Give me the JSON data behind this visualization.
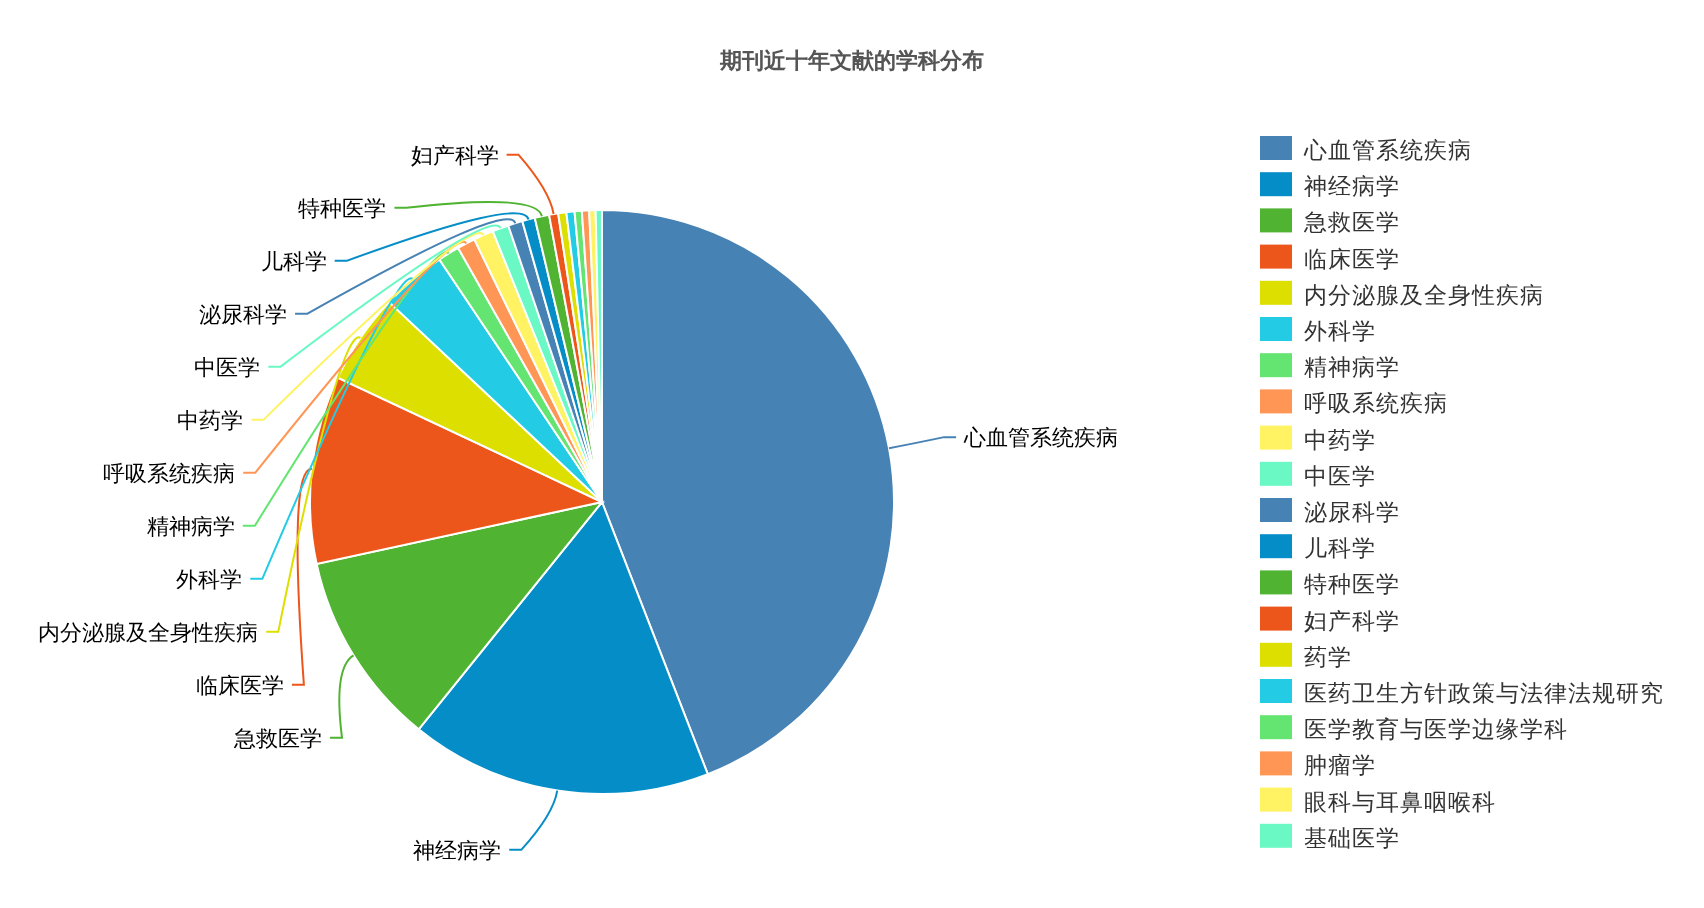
{
  "chart_data": {
    "type": "pie",
    "title": "期刊近十年文献的学科分布",
    "categories": [
      "心血管系统疾病",
      "神经病学",
      "急救医学",
      "临床医学",
      "内分泌腺及全身性疾病",
      "外科学",
      "精神病学",
      "呼吸系统疾病",
      "中药学",
      "中医学",
      "泌尿科学",
      "儿科学",
      "特种医学",
      "妇产科学",
      "药学",
      "医药卫生方针政策与法律法规研究",
      "医学教育与医学边缘学科",
      "肿瘤学",
      "眼科与耳鼻咽喉科",
      "基础医学"
    ],
    "values": [
      44.1,
      16.7,
      10.8,
      10.4,
      5.0,
      3.6,
      1.2,
      1.0,
      1.1,
      0.9,
      0.8,
      0.7,
      0.8,
      0.5,
      0.45,
      0.45,
      0.4,
      0.4,
      0.35,
      0.35
    ],
    "colors": [
      "#4682b4",
      "#058dc7",
      "#50b432",
      "#ed561b",
      "#dddf00",
      "#24cbe5",
      "#64e572",
      "#ff9655",
      "#fff263",
      "#6af9c4",
      "#4682b4",
      "#058dc7",
      "#50b432",
      "#ed561b",
      "#dddf00",
      "#24cbe5",
      "#64e572",
      "#ff9655",
      "#fff263",
      "#6af9c4"
    ],
    "legend": "right"
  }
}
